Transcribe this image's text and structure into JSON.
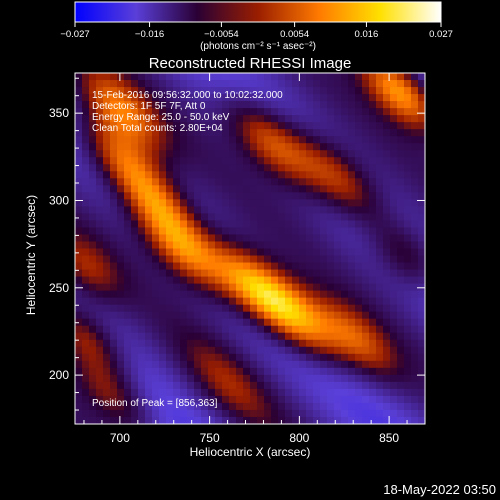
{
  "colorbar": {
    "ticks": [
      "−0.027",
      "−0.016",
      "−0.0054",
      "0.0054",
      "0.016",
      "0.027"
    ],
    "tick_values": [
      -0.027,
      -0.016,
      -0.0054,
      0.0054,
      0.016,
      0.027
    ],
    "units_label": "(photons cm⁻² s⁻¹ asec⁻²)",
    "colors": [
      "#0000ff",
      "#5a3fd8",
      "#2a0035",
      "#9a1e00",
      "#ff7a00",
      "#ffe000",
      "#ffffff"
    ]
  },
  "chart_data": {
    "type": "heatmap",
    "title": "Reconstructed RHESSI Image",
    "xlabel": "Heliocentric X (arcsec)",
    "ylabel": "Heliocentric Y (arcsec)",
    "xlim": [
      675,
      870
    ],
    "ylim": [
      172,
      373
    ],
    "xticks": [
      700,
      750,
      800,
      850
    ],
    "yticks": [
      200,
      250,
      300,
      350
    ],
    "value_range": [
      -0.027,
      0.027
    ],
    "annotations": [
      "15-Feb-2016 09:56:32.000 to 10:02:32.000",
      "Detectors: 1F 5F 7F, Att 0",
      "Energy Range: 25.0 - 50.0 keV",
      "Clean    Total counts: 2.80E+04"
    ],
    "peak_label": "Position of Peak = [856,363]",
    "peak_position": [
      856,
      363
    ],
    "blobs": [
      {
        "x": 735,
        "y": 273,
        "amp": 0.026,
        "sx": 16,
        "sy": 12
      },
      {
        "x": 775,
        "y": 250,
        "amp": 0.027,
        "sx": 16,
        "sy": 12
      },
      {
        "x": 800,
        "y": 232,
        "amp": 0.022,
        "sx": 16,
        "sy": 12
      },
      {
        "x": 832,
        "y": 220,
        "amp": 0.016,
        "sx": 14,
        "sy": 11
      },
      {
        "x": 700,
        "y": 325,
        "amp": 0.02,
        "sx": 15,
        "sy": 12
      },
      {
        "x": 700,
        "y": 352,
        "amp": 0.02,
        "sx": 15,
        "sy": 12
      },
      {
        "x": 720,
        "y": 300,
        "amp": 0.018,
        "sx": 14,
        "sy": 11
      },
      {
        "x": 785,
        "y": 333,
        "amp": 0.022,
        "sx": 16,
        "sy": 12
      },
      {
        "x": 822,
        "y": 312,
        "amp": 0.02,
        "sx": 16,
        "sy": 12
      },
      {
        "x": 856,
        "y": 363,
        "amp": 0.027,
        "sx": 14,
        "sy": 11
      },
      {
        "x": 680,
        "y": 222,
        "amp": 0.018,
        "sx": 14,
        "sy": 11
      },
      {
        "x": 695,
        "y": 190,
        "amp": 0.014,
        "sx": 14,
        "sy": 11
      },
      {
        "x": 860,
        "y": 268,
        "amp": 0.014,
        "sx": 12,
        "sy": 12
      },
      {
        "x": 760,
        "y": 195,
        "amp": 0.01,
        "sx": 16,
        "sy": 12
      },
      {
        "x": 680,
        "y": 262,
        "amp": 0.012,
        "sx": 12,
        "sy": 12
      }
    ]
  },
  "footer": {
    "timestamp": "18-May-2022 03:50"
  }
}
